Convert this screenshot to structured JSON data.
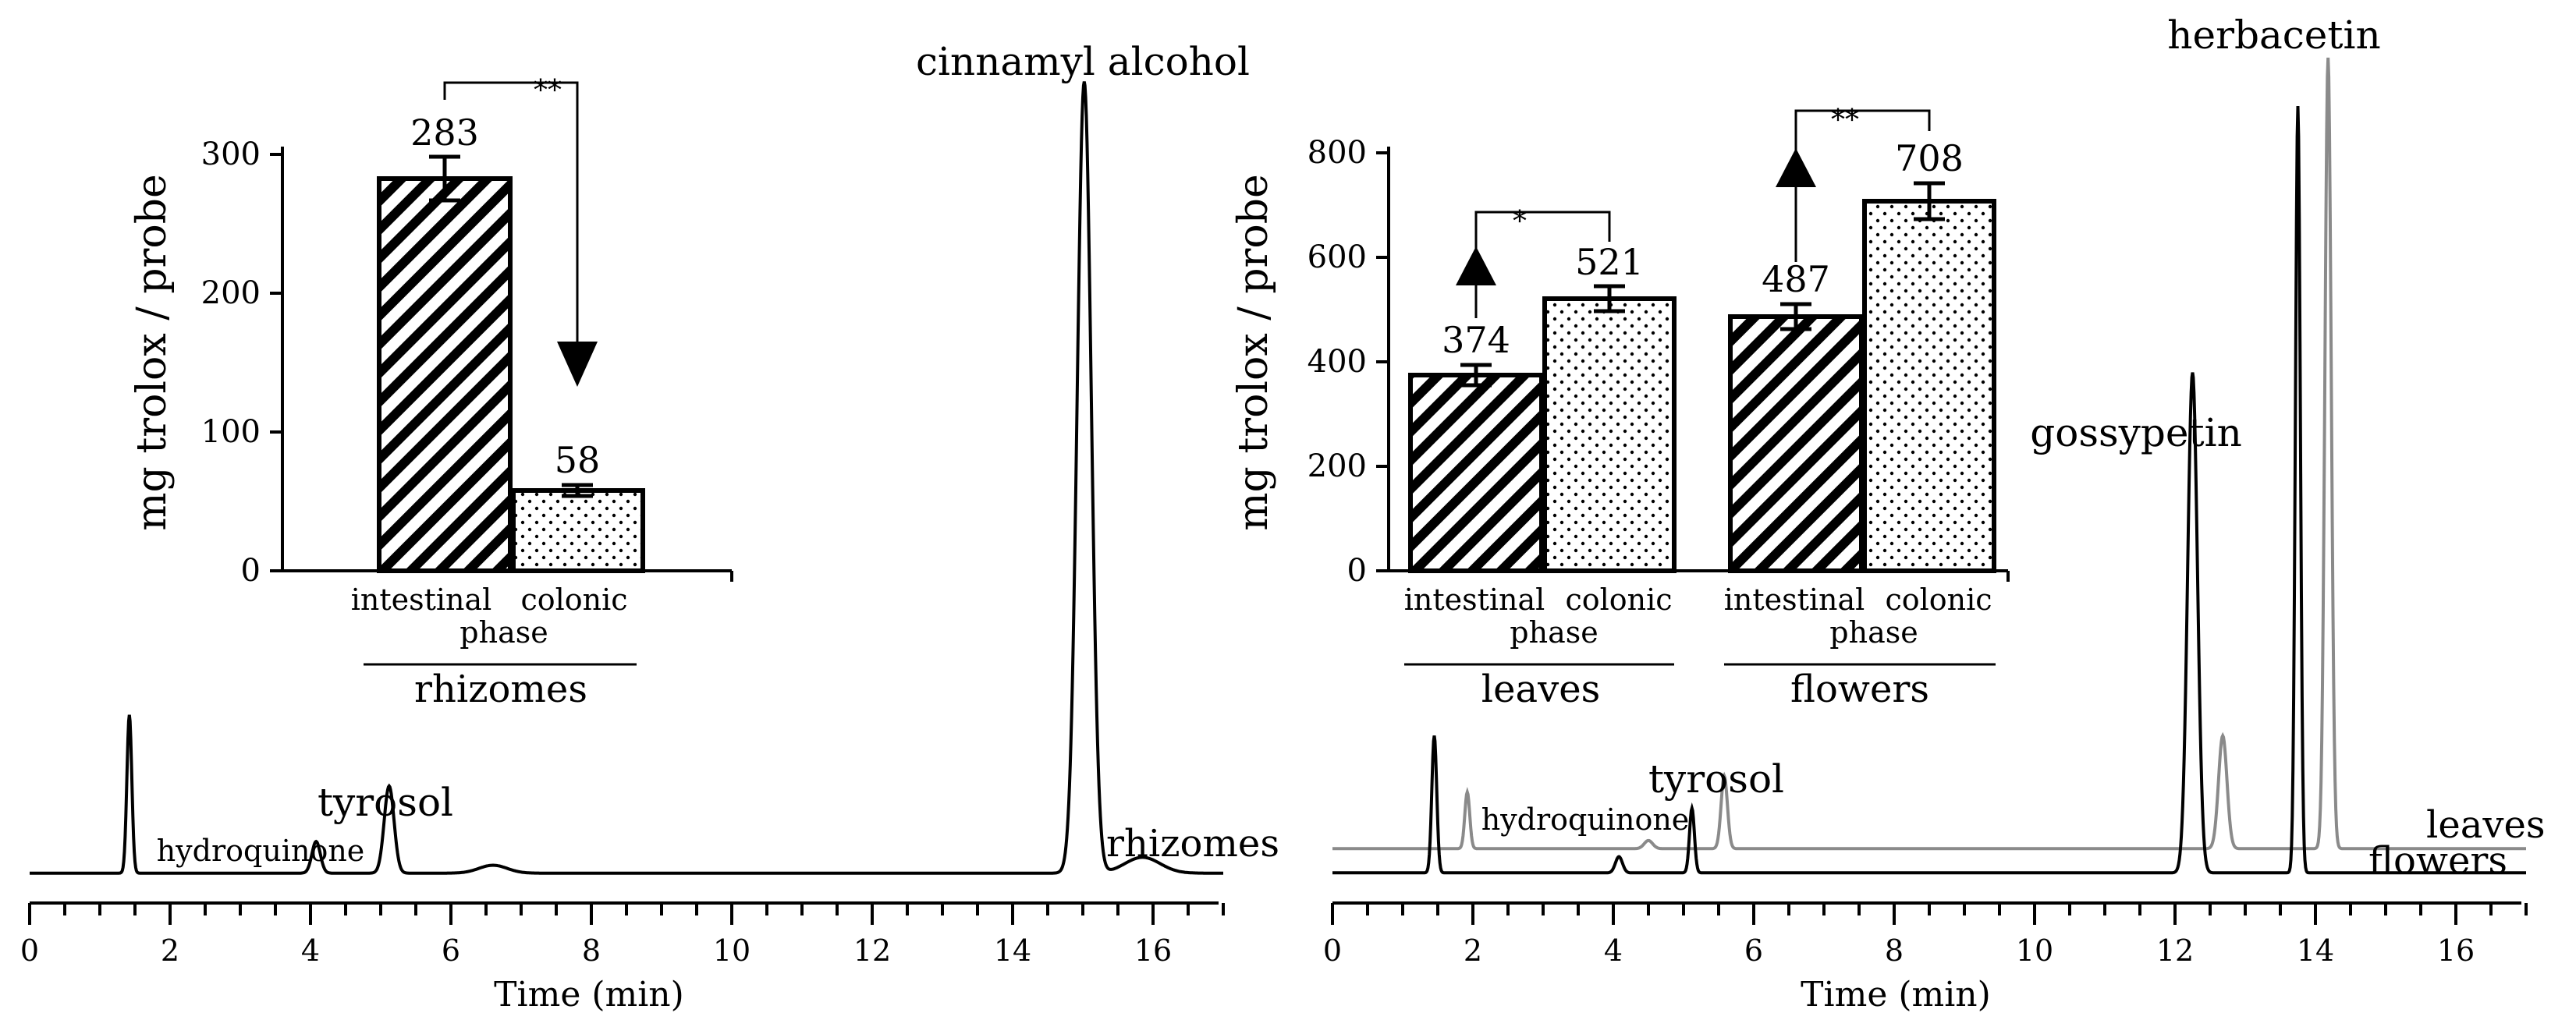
{
  "chart_data": [
    {
      "type": "line",
      "title": "",
      "xlabel": "Time (min)",
      "ylabel": "",
      "xlim": [
        0,
        17
      ],
      "ylim": [
        0,
        1
      ],
      "xticks": [
        "0",
        "2",
        "4",
        "6",
        "8",
        "10",
        "12",
        "14",
        "16"
      ],
      "series": [
        {
          "name": "rhizomes",
          "color": "#000000",
          "baseline": 0.02,
          "peaks": [
            [
              1.42,
              0.2,
              0.035
            ],
            [
              4.08,
              0.04,
              0.06
            ],
            [
              5.12,
              0.11,
              0.07
            ],
            [
              6.6,
              0.01,
              0.2
            ],
            [
              15.02,
              1.0,
              0.1
            ],
            [
              15.85,
              0.02,
              0.25
            ]
          ]
        }
      ],
      "annotations": [
        {
          "text": "cinnamyl alcohol",
          "x": 15.0,
          "y": 1.0
        },
        {
          "text": "tyrosol",
          "x": 5.1,
          "y": 0.11
        },
        {
          "text": "hydroquinone",
          "x": 4.0,
          "y": 0.04
        },
        {
          "text": "rhizomes",
          "x": 16.0,
          "y": 0.03
        }
      ]
    },
    {
      "type": "line",
      "title": "",
      "xlabel": "Time (min)",
      "ylabel": "",
      "xlim": [
        0,
        17
      ],
      "ylim": [
        0,
        1
      ],
      "xticks": [
        "0",
        "2",
        "4",
        "6",
        "8",
        "10",
        "12",
        "14",
        "16"
      ],
      "series": [
        {
          "name": "flowers",
          "color": "#000000",
          "baseline": 0.02,
          "peaks": [
            [
              1.45,
              0.17,
              0.035
            ],
            [
              4.08,
              0.02,
              0.05
            ],
            [
              5.12,
              0.08,
              0.035
            ],
            [
              12.25,
              0.62,
              0.07
            ],
            [
              13.75,
              0.95,
              0.035
            ]
          ]
        },
        {
          "name": "leaves",
          "color": "#888888",
          "baseline": 0.05,
          "peaks": [
            [
              1.92,
              0.07,
              0.035
            ],
            [
              4.5,
              0.01,
              0.06
            ],
            [
              5.58,
              0.09,
              0.045
            ],
            [
              12.68,
              0.14,
              0.06
            ],
            [
              14.18,
              0.98,
              0.045
            ]
          ]
        }
      ],
      "annotations": [
        {
          "text": "herbacetin",
          "x": 13.9,
          "y": 1.0
        },
        {
          "text": "gossypetin",
          "x": 12.2,
          "y": 0.62
        },
        {
          "text": "tyrosol",
          "x": 5.3,
          "y": 0.09
        },
        {
          "text": "hydroquinone",
          "x": 3.2,
          "y": 0.05
        },
        {
          "text": "leaves",
          "x": 16.4,
          "y": 0.05
        },
        {
          "text": "flowers",
          "x": 16.4,
          "y": 0.02
        }
      ]
    },
    {
      "type": "bar",
      "title": "",
      "ylabel": "mg trolox / probe",
      "ylim": [
        0,
        300
      ],
      "yticks": [
        "0",
        "100",
        "200",
        "300"
      ],
      "categories": [
        "intestinal",
        "colonic"
      ],
      "category_caption": "phase",
      "groups": [
        "rhizomes"
      ],
      "values": [
        283,
        58
      ],
      "errors": [
        16,
        4
      ],
      "labels": [
        "283",
        "58"
      ],
      "patterns": [
        "hatched",
        "dotted"
      ],
      "significance": "**",
      "arrow": "down"
    },
    {
      "type": "bar",
      "title": "",
      "ylabel": "mg trolox / probe",
      "ylim": [
        0,
        800
      ],
      "yticks": [
        "0",
        "200",
        "400",
        "600",
        "800"
      ],
      "categories": [
        "intestinal",
        "colonic"
      ],
      "category_caption": "phase",
      "groups": [
        {
          "name": "leaves",
          "values": [
            374,
            521
          ],
          "errors": [
            20,
            24
          ],
          "labels": [
            "374",
            "521"
          ],
          "significance": "*",
          "arrow": "up"
        },
        {
          "name": "flowers",
          "values": [
            487,
            708
          ],
          "errors": [
            24,
            34
          ],
          "labels": [
            "487",
            "708"
          ],
          "significance": "**",
          "arrow": "up"
        }
      ],
      "patterns": [
        "hatched",
        "dotted"
      ]
    }
  ]
}
